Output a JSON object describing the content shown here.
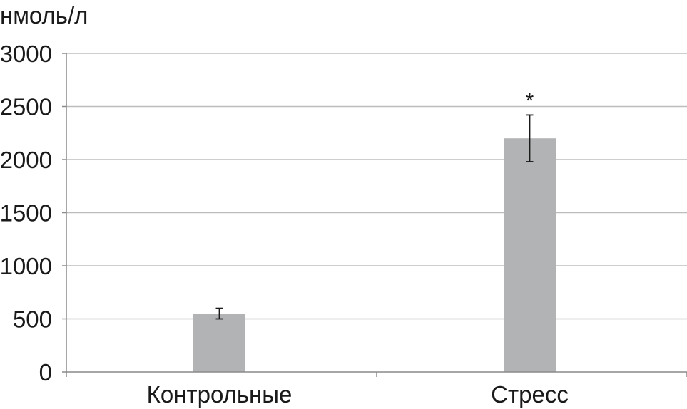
{
  "chart_data": {
    "type": "bar",
    "title": "",
    "xlabel": "",
    "ylabel": "нмоль/л",
    "categories": [
      "Контрольные",
      "Стресс"
    ],
    "series": [
      {
        "values": [
          550,
          2200
        ],
        "error": [
          50,
          220
        ],
        "annotations": [
          "",
          "*"
        ]
      }
    ],
    "ylim": [
      0,
      3000
    ],
    "yticks": [
      0,
      500,
      1000,
      1500,
      2000,
      2500,
      3000
    ],
    "grid": true,
    "legend": "none",
    "colors": {
      "bar": "#b2b3b5",
      "grid": "#bdbdbd",
      "axis": "#8a8a8a",
      "errorbar": "#1a1a1a",
      "text": "#1a1a1a"
    }
  }
}
